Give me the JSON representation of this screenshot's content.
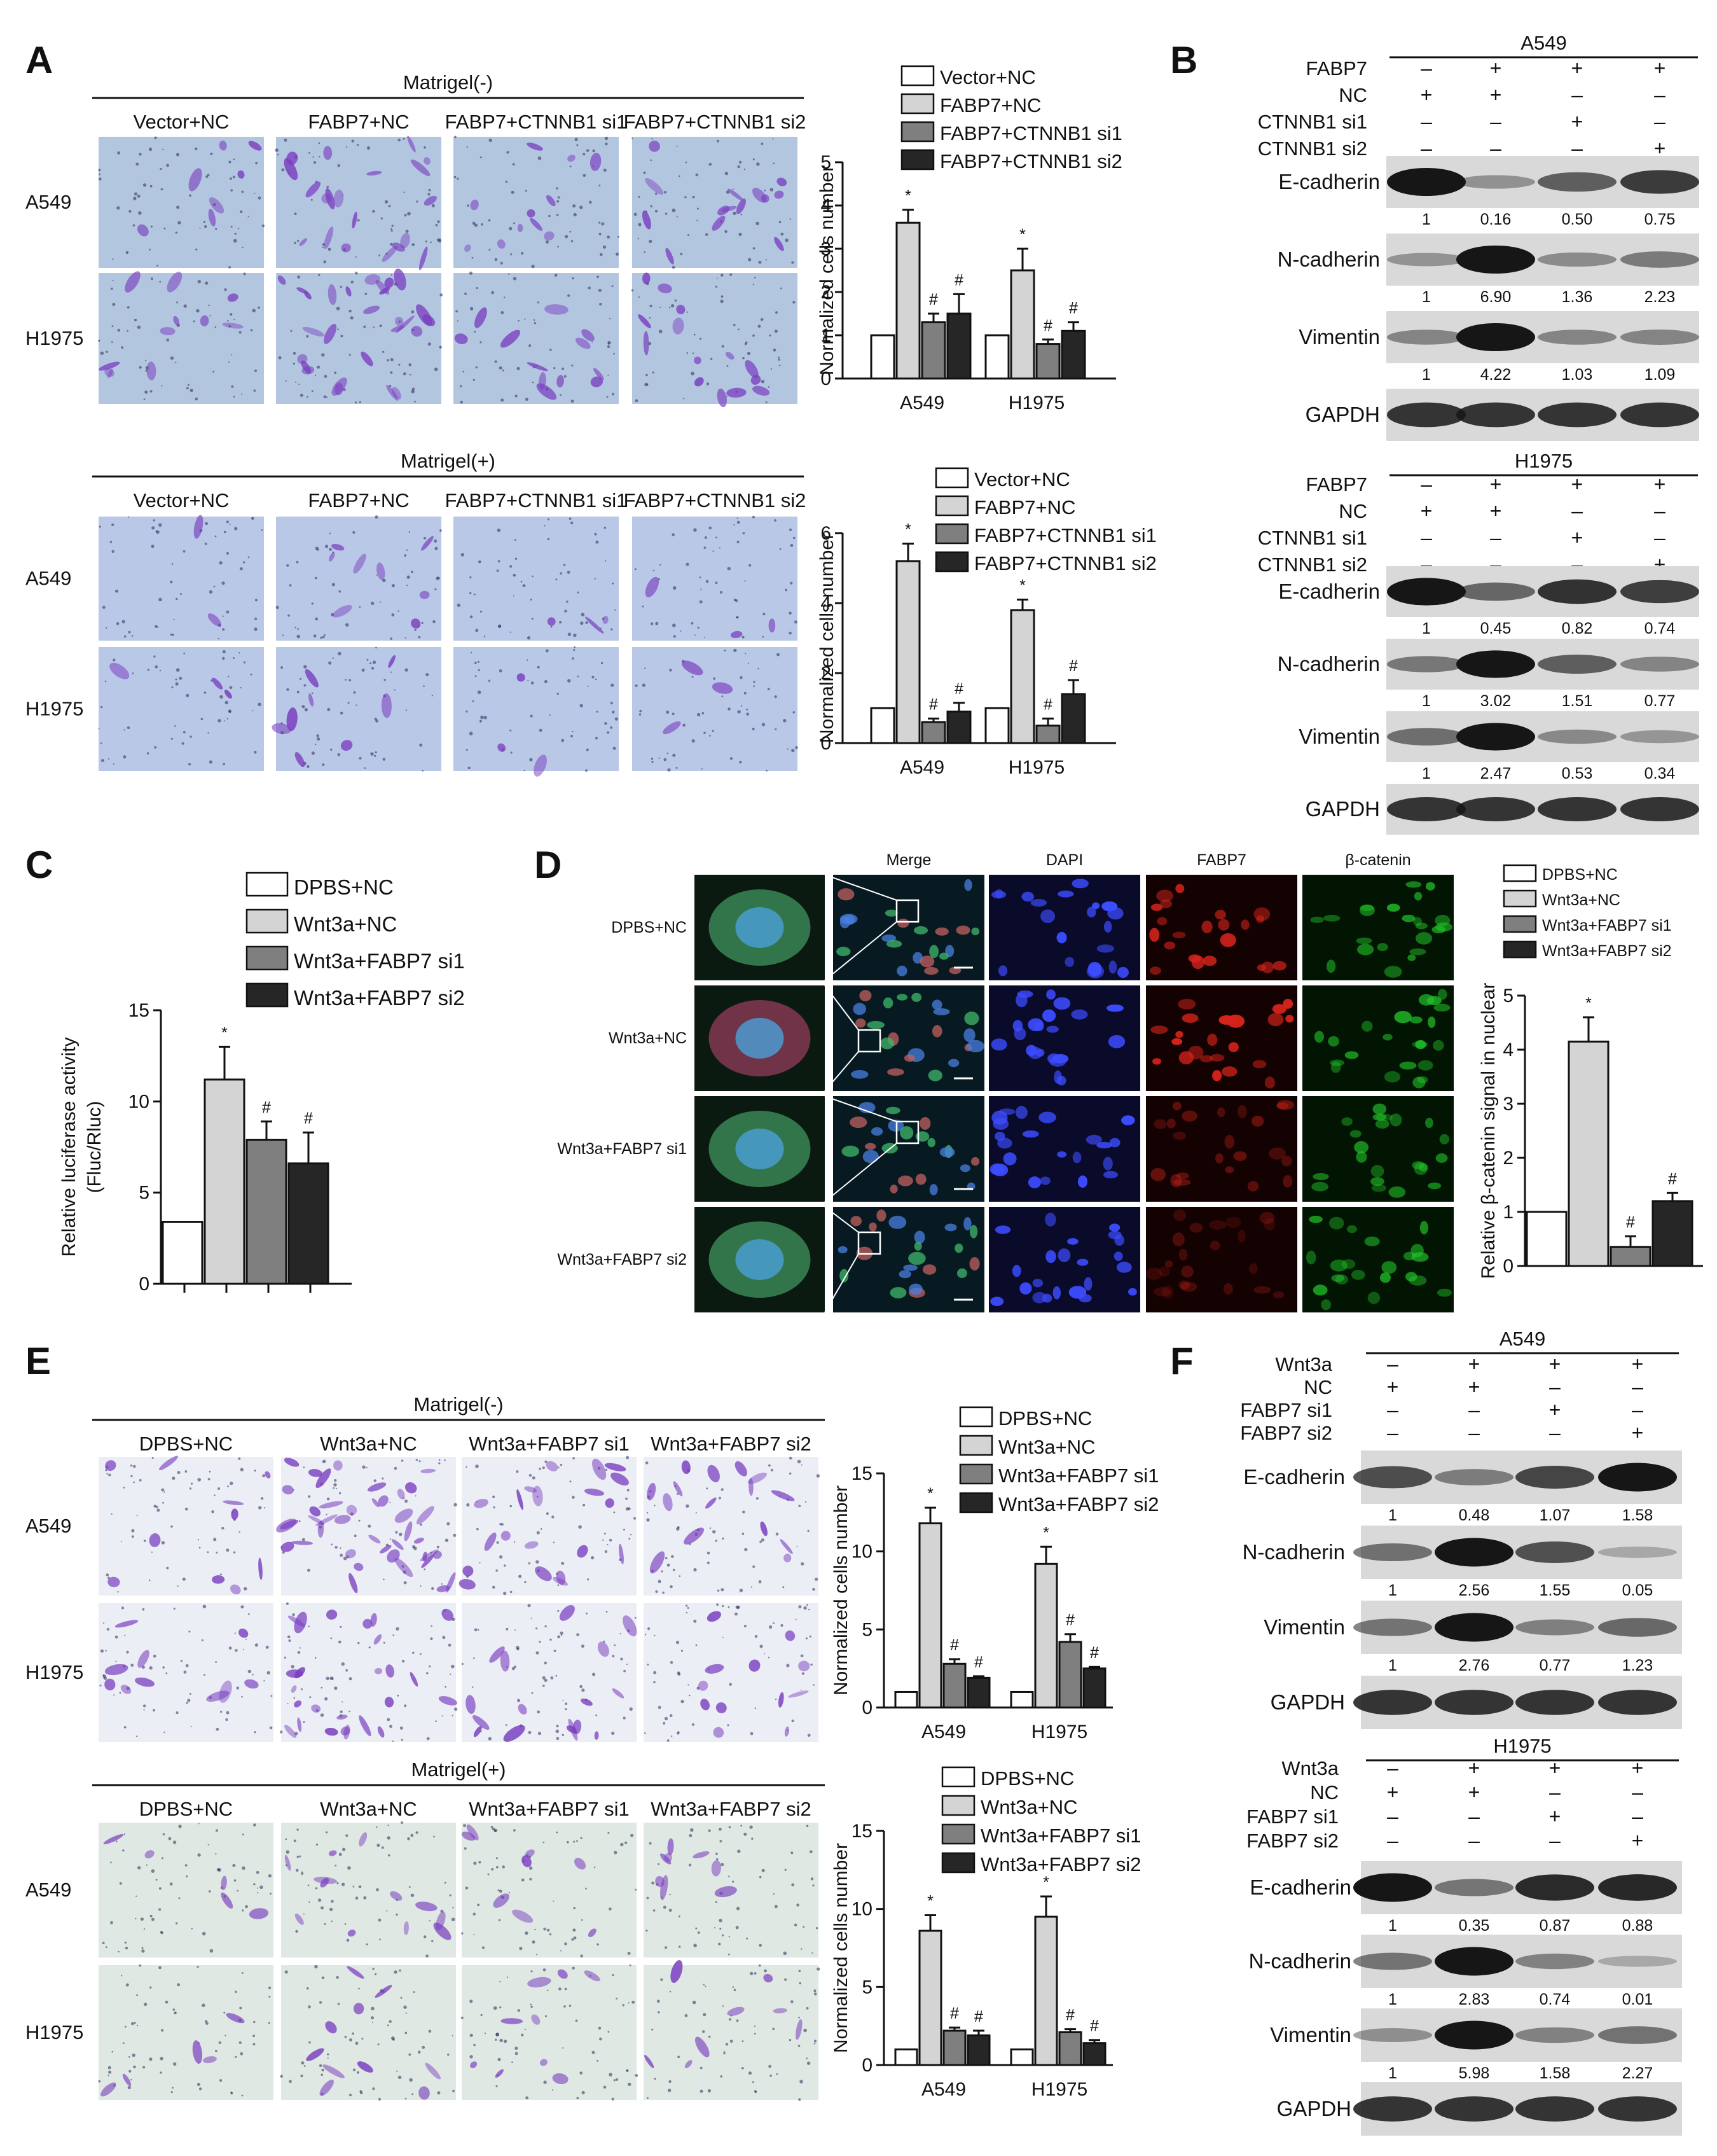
{
  "panels": {
    "A": {
      "label": "A",
      "top": {
        "header": "Matrigel(-)",
        "columns": [
          "Vector+NC",
          "FABP7+NC",
          "FABP7+CTNNB1 si1",
          "FABP7+CTNNB1 si2"
        ],
        "rows": [
          "A549",
          "H1975"
        ]
      },
      "bottom": {
        "header": "Matrigel(+)",
        "columns": [
          "Vector+NC",
          "FABP7+NC",
          "FABP7+CTNNB1 si1",
          "FABP7+CTNNB1 si2"
        ],
        "rows": [
          "A549",
          "H1975"
        ]
      }
    },
    "B": {
      "label": "B",
      "blots": [
        {
          "cell_line": "A549",
          "conditions": [
            {
              "name": "FABP7",
              "marks": [
                "–",
                "+",
                "+",
                "+"
              ]
            },
            {
              "name": "NC",
              "marks": [
                "+",
                "+",
                "–",
                "–"
              ]
            },
            {
              "name": "CTNNB1 si1",
              "marks": [
                "–",
                "–",
                "+",
                "–"
              ]
            },
            {
              "name": "CTNNB1 si2",
              "marks": [
                "–",
                "–",
                "–",
                "+"
              ]
            }
          ],
          "proteins": [
            {
              "name": "E-cadherin",
              "values": [
                "1",
                "0.16",
                "0.50",
                "0.75"
              ]
            },
            {
              "name": "N-cadherin",
              "values": [
                "1",
                "6.90",
                "1.36",
                "2.23"
              ]
            },
            {
              "name": "Vimentin",
              "values": [
                "1",
                "4.22",
                "1.03",
                "1.09"
              ]
            },
            {
              "name": "GAPDH",
              "values": []
            }
          ]
        },
        {
          "cell_line": "H1975",
          "conditions": [
            {
              "name": "FABP7",
              "marks": [
                "–",
                "+",
                "+",
                "+"
              ]
            },
            {
              "name": "NC",
              "marks": [
                "+",
                "+",
                "–",
                "–"
              ]
            },
            {
              "name": "CTNNB1 si1",
              "marks": [
                "–",
                "–",
                "+",
                "–"
              ]
            },
            {
              "name": "CTNNB1 si2",
              "marks": [
                "–",
                "–",
                "–",
                "+"
              ]
            }
          ],
          "proteins": [
            {
              "name": "E-cadherin",
              "values": [
                "1",
                "0.45",
                "0.82",
                "0.74"
              ]
            },
            {
              "name": "N-cadherin",
              "values": [
                "1",
                "3.02",
                "1.51",
                "0.77"
              ]
            },
            {
              "name": "Vimentin",
              "values": [
                "1",
                "2.47",
                "0.53",
                "0.34"
              ]
            },
            {
              "name": "GAPDH",
              "values": []
            }
          ]
        }
      ]
    },
    "C": {
      "label": "C"
    },
    "D": {
      "label": "D",
      "columns": [
        "Merge",
        "DAPI",
        "FABP7",
        "β-catenin"
      ],
      "rows": [
        "DPBS+NC",
        "Wnt3a+NC",
        "Wnt3a+FABP7 si1",
        "Wnt3a+FABP7 si2"
      ]
    },
    "E": {
      "label": "E",
      "top": {
        "header": "Matrigel(-)",
        "columns": [
          "DPBS+NC",
          "Wnt3a+NC",
          "Wnt3a+FABP7 si1",
          "Wnt3a+FABP7 si2"
        ],
        "rows": [
          "A549",
          "H1975"
        ]
      },
      "bottom": {
        "header": "Matrigel(+)",
        "columns": [
          "DPBS+NC",
          "Wnt3a+NC",
          "Wnt3a+FABP7 si1",
          "Wnt3a+FABP7 si2"
        ],
        "rows": [
          "A549",
          "H1975"
        ]
      }
    },
    "F": {
      "label": "F",
      "blots": [
        {
          "cell_line": "A549",
          "conditions": [
            {
              "name": "Wnt3a",
              "marks": [
                "–",
                "+",
                "+",
                "+"
              ]
            },
            {
              "name": "NC",
              "marks": [
                "+",
                "+",
                "–",
                "–"
              ]
            },
            {
              "name": "FABP7 si1",
              "marks": [
                "–",
                "–",
                "+",
                "–"
              ]
            },
            {
              "name": "FABP7 si2",
              "marks": [
                "–",
                "–",
                "–",
                "+"
              ]
            }
          ],
          "proteins": [
            {
              "name": "E-cadherin",
              "values": [
                "1",
                "0.48",
                "1.07",
                "1.58"
              ]
            },
            {
              "name": "N-cadherin",
              "values": [
                "1",
                "2.56",
                "1.55",
                "0.05"
              ]
            },
            {
              "name": "Vimentin",
              "values": [
                "1",
                "2.76",
                "0.77",
                "1.23"
              ]
            },
            {
              "name": "GAPDH",
              "values": []
            }
          ]
        },
        {
          "cell_line": "H1975",
          "conditions": [
            {
              "name": "Wnt3a",
              "marks": [
                "–",
                "+",
                "+",
                "+"
              ]
            },
            {
              "name": "NC",
              "marks": [
                "+",
                "+",
                "–",
                "–"
              ]
            },
            {
              "name": "FABP7 si1",
              "marks": [
                "–",
                "–",
                "+",
                "–"
              ]
            },
            {
              "name": "FABP7 si2",
              "marks": [
                "–",
                "–",
                "–",
                "+"
              ]
            }
          ],
          "proteins": [
            {
              "name": "E-cadherin",
              "values": [
                "1",
                "0.35",
                "0.87",
                "0.88"
              ]
            },
            {
              "name": "N-cadherin",
              "values": [
                "1",
                "2.83",
                "0.74",
                "0.01"
              ]
            },
            {
              "name": "Vimentin",
              "values": [
                "1",
                "5.98",
                "1.58",
                "2.27"
              ]
            },
            {
              "name": "GAPDH",
              "values": []
            }
          ]
        }
      ]
    }
  },
  "colors": {
    "series": [
      "#ffffff",
      "#d4d4d4",
      "#7f7f7f",
      "#262626"
    ],
    "micro_matrigel_minus_A": "#b3c6e0",
    "micro_matrigel_plus_A": "#b9c8e6",
    "micro_E_minus": "#eceef6",
    "micro_E_plus": "#dfe8e2",
    "stain": "#7a3fc0"
  },
  "chart_data": [
    {
      "id": "A-top",
      "type": "bar",
      "categories": [
        "A549",
        "H1975"
      ],
      "series": [
        {
          "name": "Vector+NC",
          "values": [
            1,
            1
          ],
          "errors": [
            0,
            0
          ],
          "marks": [
            "",
            ""
          ]
        },
        {
          "name": "FABP7+NC",
          "values": [
            3.6,
            2.5
          ],
          "errors": [
            0.3,
            0.5
          ],
          "marks": [
            "*",
            "*"
          ]
        },
        {
          "name": "FABP7+CTNNB1 si1",
          "values": [
            1.3,
            0.8
          ],
          "errors": [
            0.2,
            0.1
          ],
          "marks": [
            "#",
            "#"
          ]
        },
        {
          "name": "FABP7+CTNNB1 si2",
          "values": [
            1.5,
            1.1
          ],
          "errors": [
            0.45,
            0.2
          ],
          "marks": [
            "#",
            "#"
          ]
        }
      ],
      "ylabel": "Normalized cells number",
      "ylim": [
        0,
        5
      ],
      "yticks": [
        0,
        1,
        2,
        3,
        4,
        5
      ],
      "legend": "top-right"
    },
    {
      "id": "A-bottom",
      "type": "bar",
      "categories": [
        "A549",
        "H1975"
      ],
      "series": [
        {
          "name": "Vector+NC",
          "values": [
            1,
            1
          ],
          "errors": [
            0,
            0
          ],
          "marks": [
            "",
            ""
          ]
        },
        {
          "name": "FABP7+NC",
          "values": [
            5.2,
            3.8
          ],
          "errors": [
            0.5,
            0.3
          ],
          "marks": [
            "*",
            "*"
          ]
        },
        {
          "name": "FABP7+CTNNB1 si1",
          "values": [
            0.6,
            0.5
          ],
          "errors": [
            0.1,
            0.2
          ],
          "marks": [
            "#",
            "#"
          ]
        },
        {
          "name": "FABP7+CTNNB1 si2",
          "values": [
            0.9,
            1.4
          ],
          "errors": [
            0.25,
            0.4
          ],
          "marks": [
            "#",
            "#"
          ]
        }
      ],
      "ylabel": "Normalized cells number",
      "ylim": [
        0,
        6
      ],
      "yticks": [
        0,
        2,
        4,
        6
      ],
      "legend": "top-right"
    },
    {
      "id": "C",
      "type": "bar",
      "categories": [
        ""
      ],
      "series": [
        {
          "name": "DPBS+NC",
          "values": [
            3.4
          ],
          "errors": [
            0
          ],
          "marks": [
            ""
          ]
        },
        {
          "name": "Wnt3a+NC",
          "values": [
            11.2
          ],
          "errors": [
            1.8
          ],
          "marks": [
            "*"
          ]
        },
        {
          "name": "Wnt3a+FABP7 si1",
          "values": [
            7.9
          ],
          "errors": [
            1.0
          ],
          "marks": [
            "#"
          ]
        },
        {
          "name": "Wnt3a+FABP7 si2",
          "values": [
            6.6
          ],
          "errors": [
            1.7
          ],
          "marks": [
            "#"
          ]
        }
      ],
      "ylabel_lines": [
        "Relative luciferase activity",
        "(Fluc/Rluc)"
      ],
      "ylim": [
        0,
        15
      ],
      "yticks": [
        0,
        5,
        10,
        15
      ],
      "legend": "top"
    },
    {
      "id": "D",
      "type": "bar",
      "categories": [
        ""
      ],
      "series": [
        {
          "name": "DPBS+NC",
          "values": [
            1.0
          ],
          "errors": [
            0
          ],
          "marks": [
            ""
          ]
        },
        {
          "name": "Wnt3a+NC",
          "values": [
            4.15
          ],
          "errors": [
            0.45
          ],
          "marks": [
            "*"
          ]
        },
        {
          "name": "Wnt3a+FABP7 si1",
          "values": [
            0.35
          ],
          "errors": [
            0.2
          ],
          "marks": [
            "#"
          ]
        },
        {
          "name": "Wnt3a+FABP7 si2",
          "values": [
            1.2
          ],
          "errors": [
            0.15
          ],
          "marks": [
            "#"
          ]
        }
      ],
      "ylabel": "Relative β-catenin signal in nuclear",
      "ylim": [
        0,
        5
      ],
      "yticks": [
        0,
        1,
        2,
        3,
        4,
        5
      ],
      "legend": "top"
    },
    {
      "id": "E-top",
      "type": "bar",
      "categories": [
        "A549",
        "H1975"
      ],
      "series": [
        {
          "name": "DPBS+NC",
          "values": [
            1,
            1
          ],
          "errors": [
            0,
            0
          ],
          "marks": [
            "",
            ""
          ]
        },
        {
          "name": "Wnt3a+NC",
          "values": [
            11.8,
            9.2
          ],
          "errors": [
            1.0,
            1.1
          ],
          "marks": [
            "*",
            "*"
          ]
        },
        {
          "name": "Wnt3a+FABP7 si1",
          "values": [
            2.8,
            4.2
          ],
          "errors": [
            0.3,
            0.5
          ],
          "marks": [
            "#",
            "#"
          ]
        },
        {
          "name": "Wnt3a+FABP7 si2",
          "values": [
            1.9,
            2.5
          ],
          "errors": [
            0.1,
            0.1
          ],
          "marks": [
            "#",
            "#"
          ]
        }
      ],
      "ylabel": "Normalized cells number",
      "ylim": [
        0,
        15
      ],
      "yticks": [
        0,
        5,
        10,
        15
      ],
      "legend": "top-right"
    },
    {
      "id": "E-bottom",
      "type": "bar",
      "categories": [
        "A549",
        "H1975"
      ],
      "series": [
        {
          "name": "DPBS+NC",
          "values": [
            1,
            1
          ],
          "errors": [
            0,
            0
          ],
          "marks": [
            "",
            ""
          ]
        },
        {
          "name": "Wnt3a+NC",
          "values": [
            8.6,
            9.5
          ],
          "errors": [
            1.0,
            1.3
          ],
          "marks": [
            "*",
            "*"
          ]
        },
        {
          "name": "Wnt3a+FABP7 si1",
          "values": [
            2.2,
            2.1
          ],
          "errors": [
            0.2,
            0.2
          ],
          "marks": [
            "#",
            "#"
          ]
        },
        {
          "name": "Wnt3a+FABP7 si2",
          "values": [
            1.9,
            1.4
          ],
          "errors": [
            0.3,
            0.2
          ],
          "marks": [
            "#",
            "#"
          ]
        }
      ],
      "ylabel": "Normalized cells number",
      "ylim": [
        0,
        15
      ],
      "yticks": [
        0,
        5,
        10,
        15
      ],
      "legend": "top-right"
    }
  ]
}
